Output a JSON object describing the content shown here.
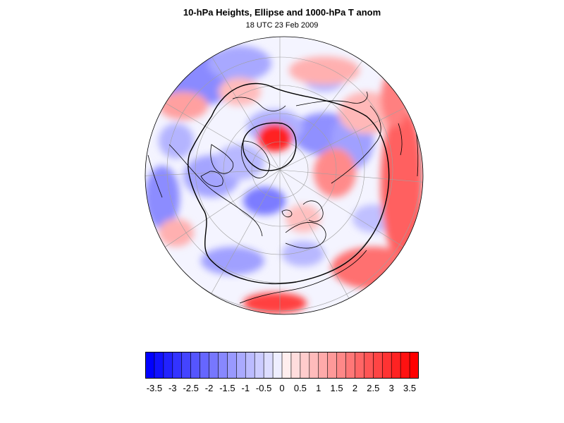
{
  "title": "10-hPa Heights, Ellipse and 1000-hPa T anom",
  "subtitle": "18 UTC 23 Feb 2009",
  "colors": {
    "cold_extreme": "#0000ff",
    "neutral": "#ffffff",
    "warm_extreme": "#ff0000",
    "coastline": "#000000",
    "contour": "#000000",
    "grid": "#a0a0a0"
  },
  "colorbar": {
    "min": -3.75,
    "max": 3.75,
    "step": 0.25,
    "labels": [
      "-3.5",
      "-3",
      "-2.5",
      "-2",
      "-1.5",
      "-1",
      "-0.5",
      "0",
      "0.5",
      "1",
      "1.5",
      "2",
      "2.5",
      "3",
      "3.5"
    ]
  }
}
